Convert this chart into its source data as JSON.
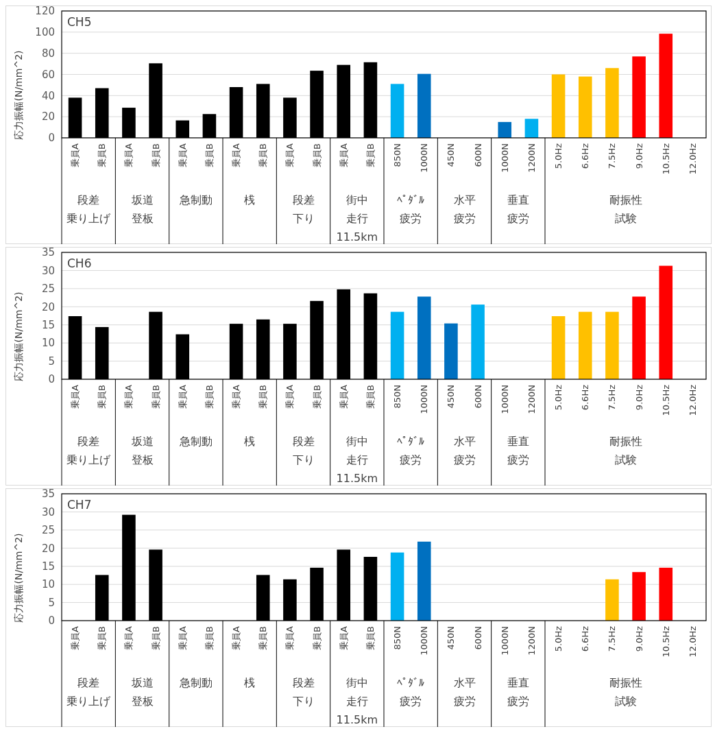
{
  "chart_data": [
    {
      "type": "bar",
      "title": "CH5",
      "ylabel": "応力振幅(N/mm^2)",
      "categories": [
        "乗員A",
        "乗員B",
        "乗員A",
        "乗員B",
        "乗員A",
        "乗員B",
        "乗員A",
        "乗員B",
        "乗員A",
        "乗員B",
        "乗員A",
        "乗員B",
        "850N",
        "1000N",
        "450N",
        "600N",
        "1000N",
        "1200N",
        "5.0Hz",
        "6.6Hz",
        "7.5Hz",
        "9.0Hz",
        "10.5Hz",
        "12.0Hz"
      ],
      "values": [
        38,
        47,
        28.5,
        70.5,
        16.5,
        22.5,
        48,
        51,
        38,
        63.5,
        69,
        71.5,
        51,
        60.5,
        null,
        null,
        15,
        18,
        60,
        58,
        66,
        77,
        98.5,
        null
      ],
      "colors": [
        "#000000",
        "#000000",
        "#000000",
        "#000000",
        "#000000",
        "#000000",
        "#000000",
        "#000000",
        "#000000",
        "#000000",
        "#000000",
        "#000000",
        "#00b0f0",
        "#0070c0",
        null,
        null,
        "#0070c0",
        "#00b0f0",
        "#ffc000",
        "#ffc000",
        "#ffc000",
        "#ff0000",
        "#ff0000",
        null
      ],
      "ylim": [
        0,
        120
      ],
      "yticks": [
        0,
        20,
        40,
        60,
        80,
        100,
        120
      ],
      "grid": "y",
      "annotations": [
        "段差乗り上げ",
        "坂道登板",
        "急制動",
        "桟",
        "段差下り",
        "街中走行 11.5km",
        "ﾍﾟﾀﾞﾙ疲労",
        "水平疲労",
        "垂直疲労",
        "耐振性試験"
      ]
    },
    {
      "type": "bar",
      "title": "CH6",
      "ylabel": "応力振幅(N/mm^2)",
      "categories": [
        "乗員A",
        "乗員B",
        "乗員A",
        "乗員B",
        "乗員A",
        "乗員B",
        "乗員A",
        "乗員B",
        "乗員A",
        "乗員B",
        "乗員A",
        "乗員B",
        "850N",
        "1000N",
        "450N",
        "600N",
        "1000N",
        "1200N",
        "5.0Hz",
        "6.6Hz",
        "7.5Hz",
        "9.0Hz",
        "10.5Hz",
        "12.0Hz"
      ],
      "values": [
        17.4,
        14.4,
        null,
        18.6,
        12.4,
        null,
        15.3,
        16.5,
        15.3,
        21.6,
        24.8,
        23.7,
        18.6,
        22.8,
        15.4,
        20.6,
        null,
        null,
        17.4,
        18.6,
        18.6,
        22.8,
        31.3,
        null
      ],
      "colors": [
        "#000000",
        "#000000",
        null,
        "#000000",
        "#000000",
        null,
        "#000000",
        "#000000",
        "#000000",
        "#000000",
        "#000000",
        "#000000",
        "#00b0f0",
        "#0070c0",
        "#0070c0",
        "#00b0f0",
        null,
        null,
        "#ffc000",
        "#ffc000",
        "#ffc000",
        "#ff0000",
        "#ff0000",
        null
      ],
      "ylim": [
        0,
        35
      ],
      "yticks": [
        0,
        5,
        10,
        15,
        20,
        25,
        30,
        35
      ],
      "grid": "y",
      "annotations": [
        "段差乗り上げ",
        "坂道登板",
        "急制動",
        "桟",
        "段差下り",
        "街中走行 11.5km",
        "ﾍﾟﾀﾞﾙ疲労",
        "水平疲労",
        "垂直疲労",
        "耐振性試験"
      ]
    },
    {
      "type": "bar",
      "title": "CH7",
      "ylabel": "応力振幅(N/mm^2)",
      "categories": [
        "乗員A",
        "乗員B",
        "乗員A",
        "乗員B",
        "乗員A",
        "乗員B",
        "乗員A",
        "乗員B",
        "乗員A",
        "乗員B",
        "乗員A",
        "乗員B",
        "850N",
        "1000N",
        "450N",
        "600N",
        "1000N",
        "1200N",
        "5.0Hz",
        "6.6Hz",
        "7.5Hz",
        "9.0Hz",
        "10.5Hz",
        "12.0Hz"
      ],
      "values": [
        null,
        12.6,
        29.2,
        19.6,
        null,
        null,
        null,
        12.6,
        11.4,
        14.6,
        19.6,
        17.6,
        18.8,
        21.8,
        null,
        null,
        null,
        null,
        null,
        null,
        11.4,
        13.4,
        14.6,
        null
      ],
      "colors": [
        null,
        "#000000",
        "#000000",
        "#000000",
        null,
        null,
        null,
        "#000000",
        "#000000",
        "#000000",
        "#000000",
        "#000000",
        "#00b0f0",
        "#0070c0",
        null,
        null,
        null,
        null,
        null,
        null,
        "#ffc000",
        "#ff0000",
        "#ff0000",
        null
      ],
      "ylim": [
        0,
        35
      ],
      "yticks": [
        0,
        5,
        10,
        15,
        20,
        25,
        30,
        35
      ],
      "grid": "y",
      "annotations": [
        "段差乗り上げ",
        "坂道登板",
        "急制動",
        "桟",
        "段差下り",
        "街中走行 11.5km",
        "ﾍﾟﾀﾞﾙ疲労",
        "水平疲労",
        "垂直疲労",
        "耐振性試験"
      ]
    }
  ]
}
